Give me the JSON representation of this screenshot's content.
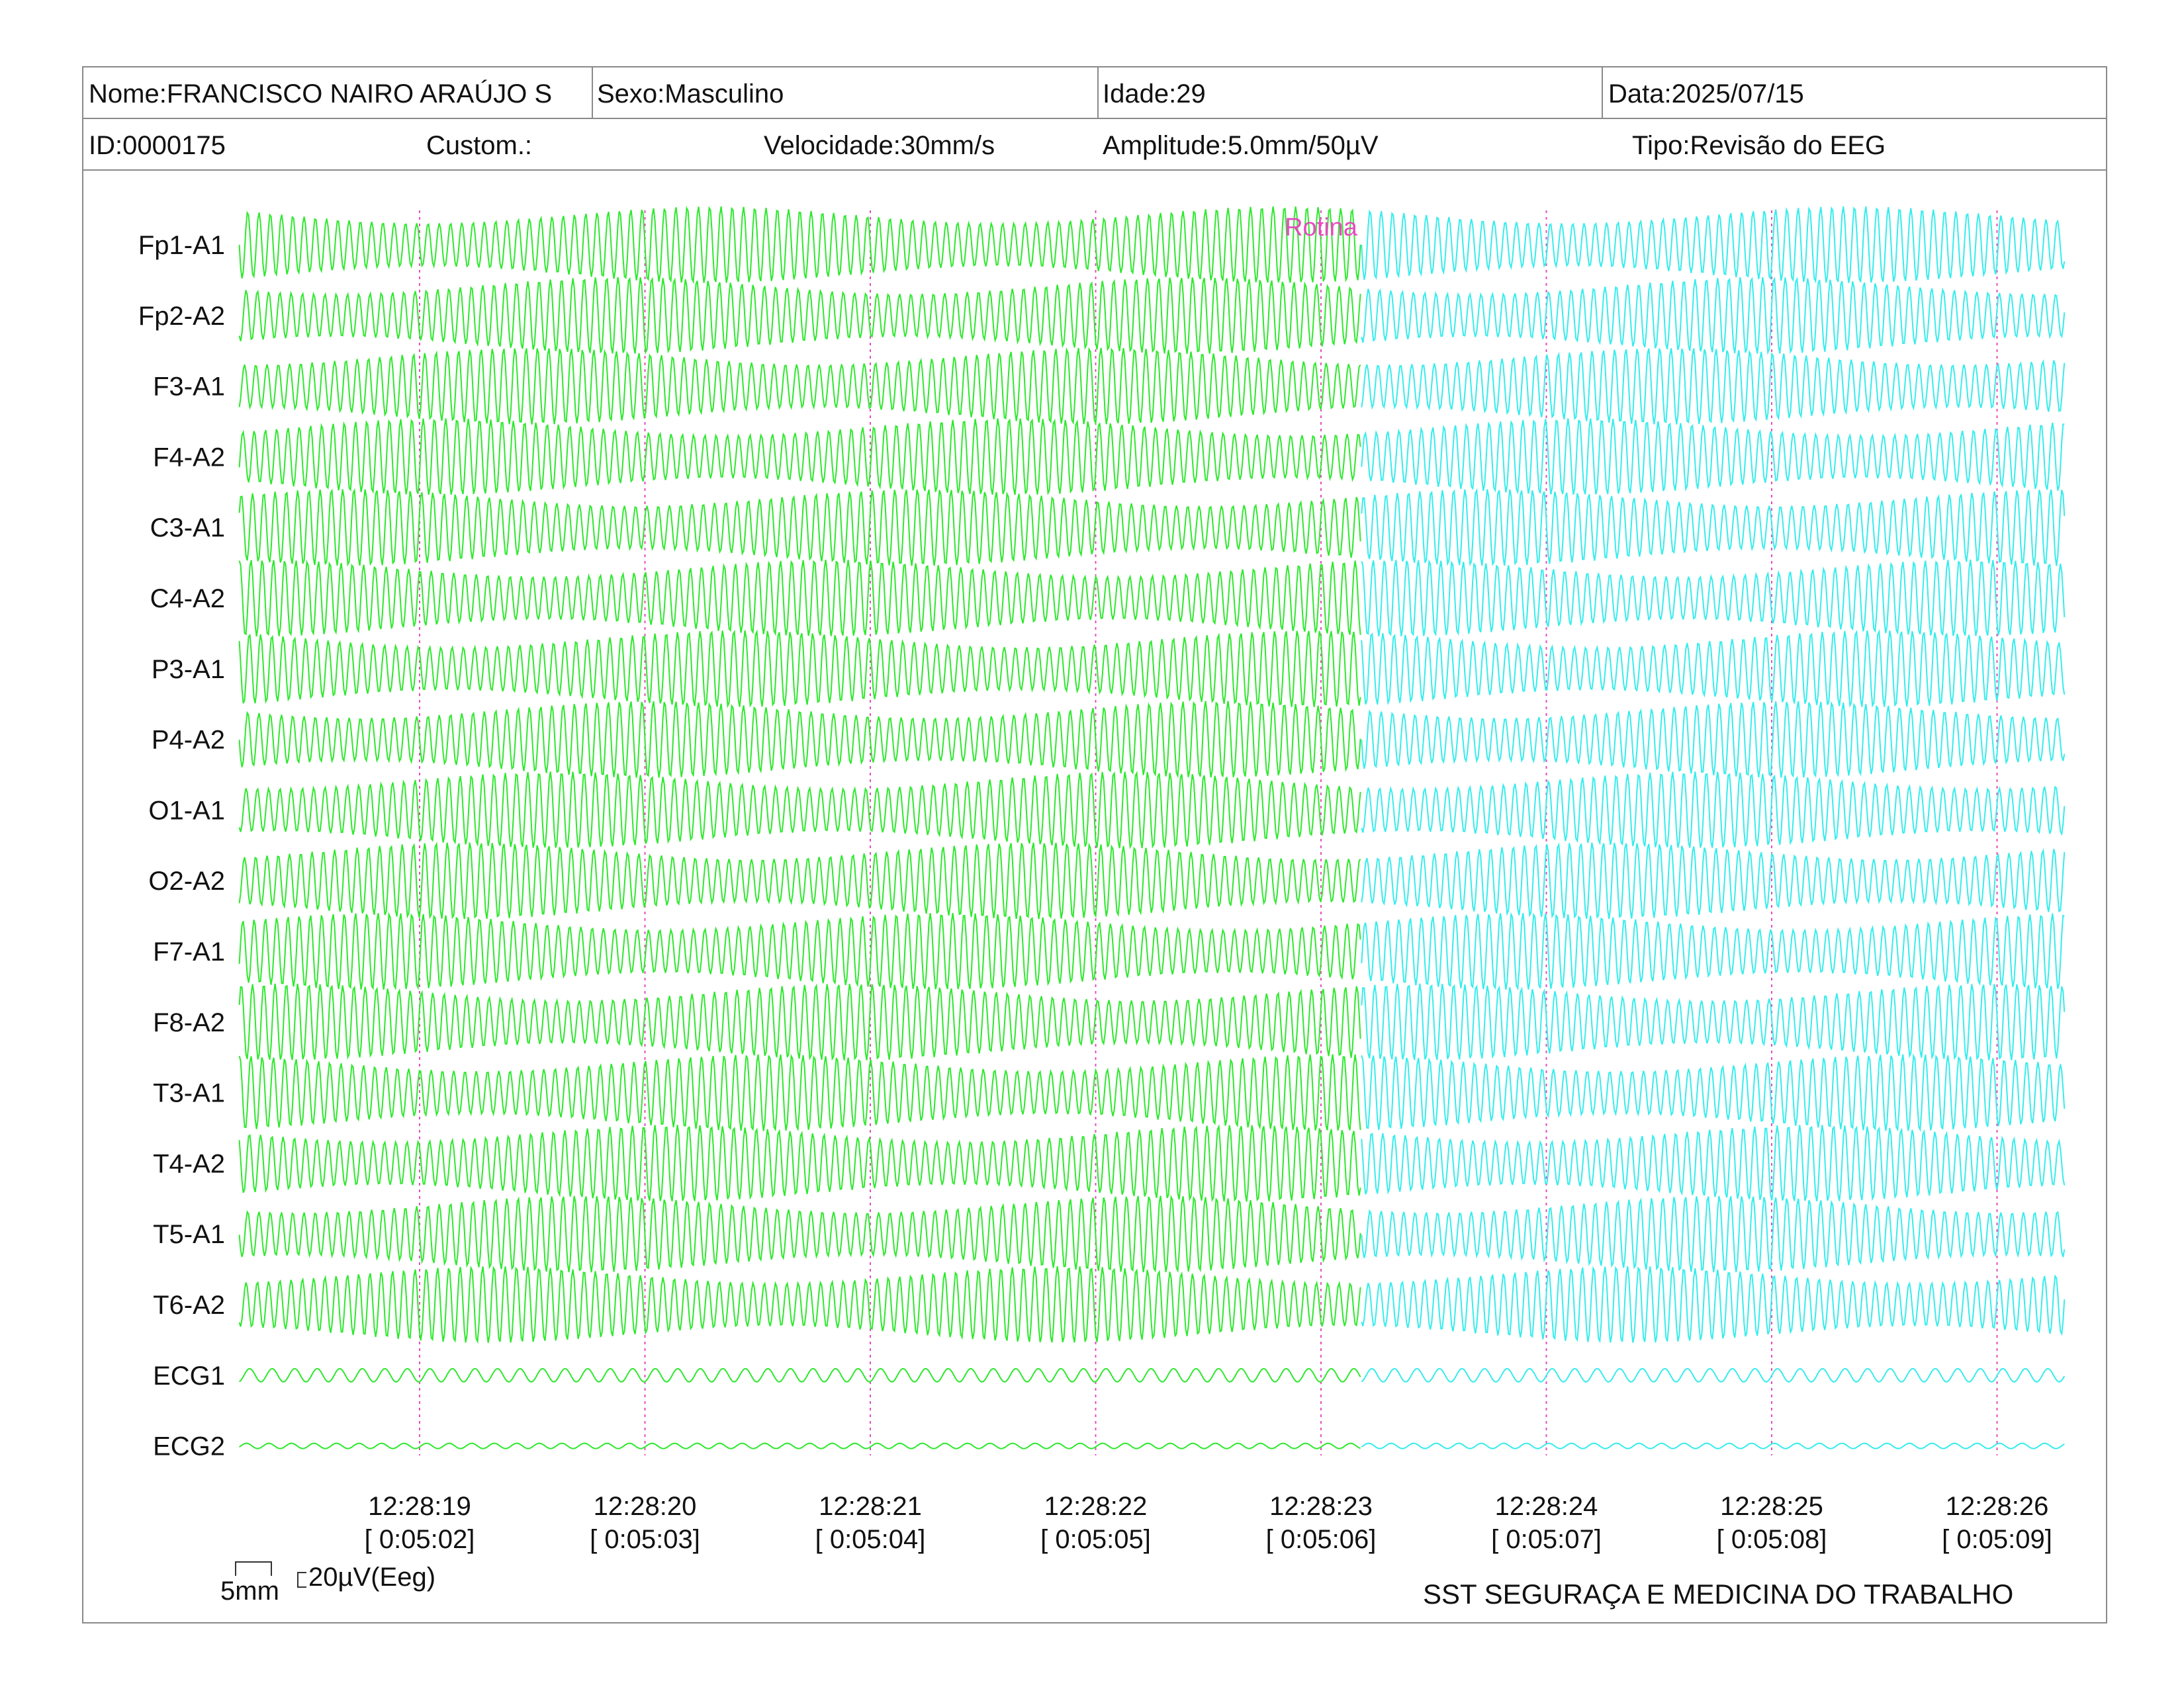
{
  "header": {
    "nome": "Nome:FRANCISCO NAIRO ARAÚJO S",
    "sexo": "Sexo:Masculino",
    "idade": "Idade:29",
    "data": "Data:2025/07/15",
    "id": "ID:0000175",
    "custom": "Custom.:",
    "velocidade": "Velocidade:30mm/s",
    "amplitude": "Amplitude:5.0mm/50µV",
    "tipo": "Tipo:Revisão do EEG"
  },
  "chart_data": {
    "type": "line",
    "channels": [
      "Fp1-A1",
      "Fp2-A2",
      "F3-A1",
      "F4-A2",
      "C3-A1",
      "C4-A2",
      "P3-A1",
      "P4-A2",
      "O1-A1",
      "O2-A2",
      "F7-A1",
      "F8-A2",
      "T3-A1",
      "T4-A2",
      "T5-A1",
      "T6-A2",
      "ECG1",
      "ECG2"
    ],
    "time_ticks": [
      {
        "clock": "12:28:19",
        "elapsed": "[ 0:05:02]"
      },
      {
        "clock": "12:28:20",
        "elapsed": "[ 0:05:03]"
      },
      {
        "clock": "12:28:21",
        "elapsed": "[ 0:05:04]"
      },
      {
        "clock": "12:28:22",
        "elapsed": "[ 0:05:05]"
      },
      {
        "clock": "12:28:23",
        "elapsed": "[ 0:05:06]"
      },
      {
        "clock": "12:28:24",
        "elapsed": "[ 0:05:07]"
      },
      {
        "clock": "12:28:25",
        "elapsed": "[ 0:05:08]"
      },
      {
        "clock": "12:28:26",
        "elapsed": "[ 0:05:09]"
      }
    ],
    "annotation": {
      "text": "Rotina",
      "at_seconds_from_first_tick": 4.0,
      "color": "#e64bbf"
    },
    "segments": [
      {
        "seconds_before_first_tick": 0.8,
        "seconds_after_first_tick": 4.18,
        "color": "#2ee82e"
      },
      {
        "seconds_after_first_tick_start": 4.18,
        "seconds_after_first_tick_end": 7.3,
        "color": "#37ecec"
      }
    ],
    "eeg_oscillation_hz": 20,
    "ecg_oscillation_hz": 10,
    "grid": true,
    "grid_color": "#e64bbf"
  },
  "scale": {
    "time": "5mm",
    "amplitude": "20µV(Eeg)"
  },
  "footer": {
    "company": "SST SEGURAÇA E MEDICINA DO TRABALHO"
  }
}
